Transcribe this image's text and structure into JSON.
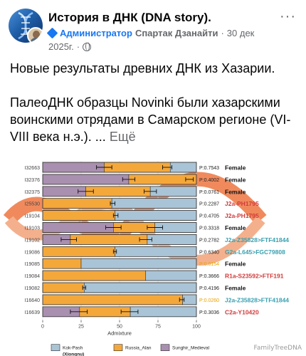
{
  "post": {
    "group_name": "История в ДНК (DNA story).",
    "admin_label": "Администратор",
    "author": "Спартак Дзанайти",
    "date_part1": "30 дек",
    "date_part2": "2025г.",
    "separator": "·",
    "more_label": "···",
    "paragraph1": "Новые результаты древних ДНК из Хазарии.",
    "paragraph2": "ПалеоДНК образцы Novinki были хазарскими воинскими отрядами в Самарском регионе (VI-VIII века н.э.). ...",
    "see_more": "Ещё"
  },
  "colors": {
    "kok_pash": "#a9c4d6",
    "russia_alan": "#f4a83a",
    "sunghir": "#a98fb0",
    "female": "#111111",
    "red_hap": "#d23a3a",
    "teal_hap": "#3aa0b0",
    "p_sig": "#e8a100"
  },
  "chart_data": {
    "type": "bar",
    "stacked": true,
    "orientation": "horizontal",
    "xlabel": "Admixture",
    "xlim": [
      0,
      100
    ],
    "xticks": [
      "0",
      "25",
      "50",
      "75",
      "100"
    ],
    "legend_position": "bottom",
    "series": [
      {
        "name": "Kok-Pash (Xiongnu)",
        "color": "#a9c4d6"
      },
      {
        "name": "Russia_Alan",
        "color": "#f4a83a"
      },
      {
        "name": "Sunghir_Medieval",
        "color": "#a98fb0"
      }
    ],
    "rows": [
      {
        "id": "I32663",
        "sunghir": 40,
        "alan": 43,
        "kok": 17,
        "err": [
          35,
          45,
          78,
          84
        ],
        "p": "P:0.7543",
        "p_sig": false,
        "label": "Female",
        "label_color": "female"
      },
      {
        "id": "I32376",
        "sunghir": 56,
        "alan": 44,
        "kok": 0,
        "err": [
          52,
          60,
          93,
          98
        ],
        "p": "P:0.4002",
        "p_sig": false,
        "label": "Female",
        "label_color": "female"
      },
      {
        "id": "I32375",
        "sunghir": 28,
        "alan": 42,
        "kok": 30,
        "err": [
          23,
          33,
          66,
          74
        ],
        "p": "P:0.0761",
        "p_sig": false,
        "label": "Female",
        "label_color": "female"
      },
      {
        "id": "I25530",
        "sunghir": 0,
        "alan": 45,
        "kok": 55,
        "err": [
          44,
          47
        ],
        "p": "P:0.2287",
        "p_sig": false,
        "label": "J2a-PH1795",
        "label_color": "red_hap"
      },
      {
        "id": "I19104",
        "sunghir": 0,
        "alan": 47,
        "kok": 53,
        "err": [
          46,
          49
        ],
        "p": "P:0.4705",
        "p_sig": false,
        "label": "J2a-PH1795",
        "label_color": "red_hap"
      },
      {
        "id": "I19103",
        "sunghir": 46,
        "alan": 27,
        "kok": 27,
        "err": [
          41,
          51,
          68,
          78
        ],
        "p": "P:0.3318",
        "p_sig": false,
        "label": "Female",
        "label_color": "female"
      },
      {
        "id": "I19102",
        "sunghir": 18,
        "alan": 50,
        "kok": 32,
        "err": [
          12,
          22,
          63,
          71
        ],
        "p": "P:0.2782",
        "p_sig": false,
        "label": "J2a-Z35828>FTF41844",
        "label_color": "teal_hap"
      },
      {
        "id": "I19086",
        "sunghir": 0,
        "alan": 47,
        "kok": 53,
        "err": [
          46,
          48
        ],
        "p": "P:0.6340",
        "p_sig": false,
        "label": "G2a-L645>FGC79808",
        "label_color": "teal_hap"
      },
      {
        "id": "I19085",
        "sunghir": 0,
        "alan": 25,
        "kok": 75,
        "err": [],
        "p": "P:0.0154",
        "p_sig": true,
        "label": "Female",
        "label_color": "female"
      },
      {
        "id": "I19084",
        "sunghir": 0,
        "alan": 67,
        "kok": 33,
        "err": [],
        "p": "P:0.3666",
        "p_sig": false,
        "label": "R1a-S23592>FTF191",
        "label_color": "red_hap"
      },
      {
        "id": "I19082",
        "sunghir": 0,
        "alan": 27,
        "kok": 73,
        "err": [
          26,
          28
        ],
        "p": "P:0.4196",
        "p_sig": false,
        "label": "Female",
        "label_color": "female"
      },
      {
        "id": "I16640",
        "sunghir": 0,
        "alan": 91,
        "kok": 9,
        "err": [
          89,
          92
        ],
        "p": "P:0.0260",
        "p_sig": true,
        "label": "J2a-Z35828>FTF41844",
        "label_color": "teal_hap"
      },
      {
        "id": "I16639",
        "sunghir": 24,
        "alan": 33,
        "kok": 43,
        "err": [
          18,
          29,
          51,
          62
        ],
        "p": "P:0.3036",
        "p_sig": false,
        "label": "C2a-Y10420",
        "label_color": "red_hap"
      }
    ]
  },
  "legend": {
    "kok_label_line1": "Kok-Pash",
    "kok_label_line2": "(Xiongnu)",
    "alan_label": "Russia_Alan",
    "sunghir_label": "Sunghir_Medieval"
  },
  "watermark": {
    "text": "FamilyTreeDNA"
  }
}
